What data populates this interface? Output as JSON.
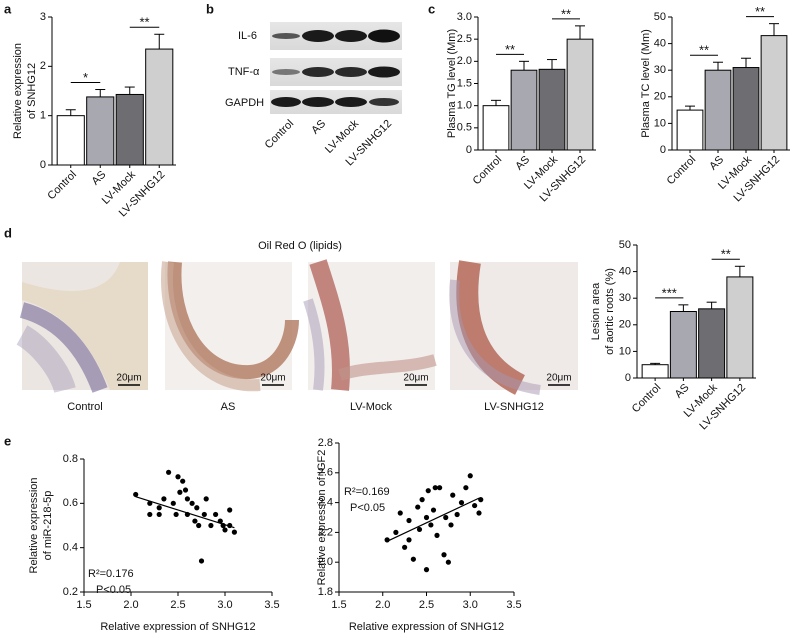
{
  "panel_labels": [
    "a",
    "b",
    "c",
    "d",
    "e"
  ],
  "blot": {
    "rows": [
      "IL-6",
      "TNF-α",
      "GAPDH"
    ],
    "lanes": [
      "Control",
      "AS",
      "LV-Mock",
      "LV-SNHG12"
    ]
  },
  "histology": {
    "title": "Oil Red O (lipids)",
    "captions": [
      "Control",
      "AS",
      "LV-Mock",
      "LV-SNHG12"
    ],
    "scale_bars": [
      "20μm",
      "20μm",
      "20μm",
      "20μm"
    ]
  },
  "chart_data": [
    {
      "type": "bar",
      "y_label": [
        "Relative expression",
        "of SNHG12"
      ],
      "categories": [
        "Control",
        "AS",
        "LV-Mock",
        "LV-SNHG12"
      ],
      "values": [
        1.0,
        1.38,
        1.43,
        2.35
      ],
      "errors": [
        0.12,
        0.15,
        0.15,
        0.3
      ],
      "colors": [
        "#ffffff",
        "#a8a8b0",
        "#6e6e72",
        "#cfcfcf"
      ],
      "ylim": [
        0,
        3
      ],
      "yticks": [
        0,
        1,
        2,
        3
      ],
      "annotations": [
        {
          "text": "*",
          "pair": [
            0,
            1
          ]
        },
        {
          "text": "**",
          "pair": [
            2,
            3
          ]
        }
      ]
    },
    {
      "type": "bar",
      "y_label": [
        "Plasma TG level (Mm)"
      ],
      "categories": [
        "Control",
        "AS",
        "LV-Mock",
        "LV-SNHG12"
      ],
      "values": [
        1.0,
        1.8,
        1.82,
        2.5
      ],
      "errors": [
        0.12,
        0.2,
        0.22,
        0.3
      ],
      "colors": [
        "#ffffff",
        "#a8a8b0",
        "#6e6e72",
        "#cfcfcf"
      ],
      "ylim": [
        0,
        3
      ],
      "yticks": [
        0,
        0.5,
        {
          "value": 1,
          "label": "1.0"
        },
        1.5,
        {
          "value": 2,
          "label": "2.0"
        },
        2.5,
        {
          "value": 3,
          "label": "3.0"
        }
      ],
      "annotations": [
        {
          "text": "**",
          "pair": [
            0,
            1
          ]
        },
        {
          "text": "**",
          "pair": [
            2,
            3
          ]
        }
      ]
    },
    {
      "type": "bar",
      "y_label": [
        "Plasma TC level (Mm)"
      ],
      "categories": [
        "Control",
        "AS",
        "LV-Mock",
        "LV-SNHG12"
      ],
      "values": [
        15,
        30,
        31,
        43
      ],
      "errors": [
        1.5,
        3,
        3.5,
        4.5
      ],
      "colors": [
        "#ffffff",
        "#a8a8b0",
        "#6e6e72",
        "#cfcfcf"
      ],
      "ylim": [
        0,
        50
      ],
      "yticks": [
        0,
        10,
        20,
        30,
        40,
        50
      ],
      "annotations": [
        {
          "text": "**",
          "pair": [
            0,
            1
          ]
        },
        {
          "text": "**",
          "pair": [
            2,
            3
          ]
        }
      ]
    },
    {
      "type": "bar",
      "y_label": [
        "Lesion area",
        "of aortic roots (%)"
      ],
      "categories": [
        "Control",
        "AS",
        "LV-Mock",
        "LV-SNHG12"
      ],
      "values": [
        5,
        25,
        26,
        38
      ],
      "errors": [
        0.5,
        2.5,
        2.5,
        4
      ],
      "colors": [
        "#ffffff",
        "#a8a8b0",
        "#6e6e72",
        "#cfcfcf"
      ],
      "ylim": [
        0,
        50
      ],
      "yticks": [
        0,
        10,
        20,
        30,
        40,
        50
      ],
      "annotations": [
        {
          "text": "***",
          "pair": [
            0,
            1
          ]
        },
        {
          "text": "**",
          "pair": [
            2,
            3
          ]
        }
      ]
    },
    {
      "type": "scatter",
      "x_label": "Relative expression of SNHG12",
      "y_label": [
        "Relative expression",
        "of miR-218-5p"
      ],
      "x": [
        2.05,
        2.2,
        2.2,
        2.3,
        2.35,
        2.4,
        2.45,
        2.48,
        2.5,
        2.52,
        2.55,
        2.6,
        2.6,
        2.65,
        2.68,
        2.7,
        2.72,
        2.75,
        2.78,
        2.8,
        2.85,
        2.9,
        2.95,
        2.98,
        3.0,
        3.05,
        3.05,
        3.1,
        2.3,
        2.58
      ],
      "y": [
        0.64,
        0.6,
        0.55,
        0.58,
        0.62,
        0.74,
        0.6,
        0.55,
        0.72,
        0.65,
        0.7,
        0.62,
        0.55,
        0.6,
        0.52,
        0.58,
        0.5,
        0.34,
        0.55,
        0.62,
        0.5,
        0.55,
        0.52,
        0.5,
        0.48,
        0.57,
        0.5,
        0.47,
        0.55,
        0.66
      ],
      "fit": {
        "x": [
          2.05,
          3.1
        ],
        "y": [
          0.63,
          0.49
        ]
      },
      "xlim": [
        1.5,
        3.5
      ],
      "xticks": [
        1.5,
        {
          "value": 2,
          "label": "2.0"
        },
        2.5,
        {
          "value": 3,
          "label": "3.0"
        },
        3.5
      ],
      "ylim": [
        0.2,
        0.8
      ],
      "yticks": [
        0.2,
        0.4,
        0.6,
        0.8
      ],
      "annotations": [
        "R²=0.176",
        "P<0.05"
      ]
    },
    {
      "type": "scatter",
      "x_label": "Relative expression of SNHG12",
      "y_label": [
        "Relative expression of IGF2"
      ],
      "x": [
        2.05,
        2.15,
        2.2,
        2.25,
        2.3,
        2.3,
        2.35,
        2.4,
        2.42,
        2.45,
        2.5,
        2.5,
        2.52,
        2.55,
        2.58,
        2.6,
        2.62,
        2.65,
        2.7,
        2.72,
        2.75,
        2.78,
        2.8,
        2.85,
        2.9,
        2.95,
        3.0,
        3.05,
        3.1,
        3.12
      ],
      "y": [
        2.15,
        2.2,
        2.33,
        2.1,
        2.15,
        2.28,
        2.02,
        2.37,
        2.22,
        2.42,
        2.3,
        1.95,
        2.48,
        2.25,
        2.35,
        2.5,
        2.18,
        2.5,
        2.05,
        2.3,
        2.0,
        2.25,
        2.45,
        2.32,
        2.4,
        2.5,
        2.58,
        2.38,
        2.33,
        2.42
      ],
      "fit": {
        "x": [
          2.05,
          3.1
        ],
        "y": [
          2.14,
          2.43
        ]
      },
      "xlim": [
        1.5,
        3.5
      ],
      "xticks": [
        1.5,
        {
          "value": 2,
          "label": "2.0"
        },
        2.5,
        {
          "value": 3,
          "label": "3.0"
        },
        3.5
      ],
      "ylim": [
        1.8,
        2.8
      ],
      "yticks": [
        1.8,
        {
          "value": 2,
          "label": "2.0"
        },
        2.2,
        2.4,
        2.6,
        2.8
      ],
      "annotations": [
        "R²=0.169",
        "P<0.05"
      ]
    }
  ]
}
